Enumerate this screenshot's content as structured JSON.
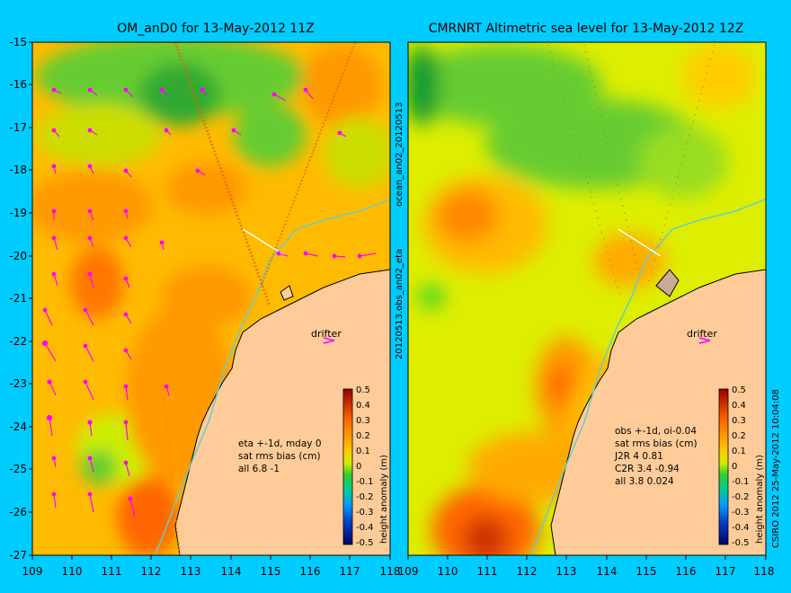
{
  "left_panel": {
    "title": "OM_anD0 for 13-May-2012 11Z",
    "stats_lines": [
      "eta +-1d, mday 0",
      "sat rms bias (cm)",
      "all 6.8 -1"
    ],
    "drifter_label": "drifter"
  },
  "right_panel": {
    "title": "CMRNRT Altimetric sea level  for 13-May-2012 12Z",
    "stats_lines": [
      "obs +-1d, oi-0.04",
      "sat rms bias (cm)",
      "J2R   4 0.81",
      "C2R   3.4 -0.94",
      "all 3.8 0.024"
    ],
    "drifter_label": "drifter"
  },
  "side_label": "20120513.obs_an02_eta",
  "side_label_top": "ocean_an02_20120513",
  "credit": "CSIRO 2012   25-May-2012 10:04:08",
  "colorbar": {
    "label": "height anomaly (m)",
    "ticks": [
      "0.5",
      "0.4",
      "0.3",
      "0.2",
      "0.1",
      "0",
      "-0.1",
      "-0.2",
      "-0.3",
      "-0.4",
      "-0.5"
    ]
  },
  "axes": {
    "lat_ticks": [
      "-15",
      "-16",
      "-17",
      "-18",
      "-19",
      "-20",
      "-21",
      "-22",
      "-23",
      "-24",
      "-25",
      "-26",
      "-27"
    ],
    "lon_ticks": [
      "109",
      "110",
      "111",
      "112",
      "113",
      "114",
      "115",
      "116",
      "117",
      "118"
    ]
  },
  "colors": {
    "background": "#00ccff",
    "land": "#ffcc99",
    "high": "#cc3300",
    "mid": "#ffcc00",
    "low": "#33cc33"
  }
}
